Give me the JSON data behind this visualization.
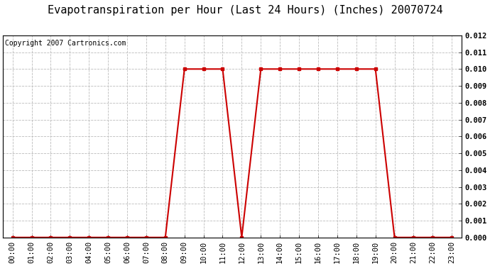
{
  "title": "Evapotranspiration per Hour (Last 24 Hours) (Inches) 20070724",
  "copyright_text": "Copyright 2007 Cartronics.com",
  "hours": [
    "00:00",
    "01:00",
    "02:00",
    "03:00",
    "04:00",
    "05:00",
    "06:00",
    "07:00",
    "08:00",
    "09:00",
    "10:00",
    "11:00",
    "12:00",
    "13:00",
    "14:00",
    "15:00",
    "16:00",
    "17:00",
    "18:00",
    "19:00",
    "20:00",
    "21:00",
    "22:00",
    "23:00"
  ],
  "values": [
    0.0,
    0.0,
    0.0,
    0.0,
    0.0,
    0.0,
    0.0,
    0.0,
    0.0,
    0.01,
    0.01,
    0.01,
    0.0,
    0.01,
    0.01,
    0.01,
    0.01,
    0.01,
    0.01,
    0.01,
    0.0,
    0.0,
    0.0,
    0.0
  ],
  "ylim": [
    0,
    0.012
  ],
  "yticks": [
    0.0,
    0.001,
    0.002,
    0.003,
    0.004,
    0.005,
    0.006,
    0.007,
    0.008,
    0.009,
    0.01,
    0.011,
    0.012
  ],
  "line_color": "#cc0000",
  "marker": "s",
  "marker_size": 2.5,
  "grid_color": "#bbbbbb",
  "background_color": "#ffffff",
  "title_fontsize": 11,
  "copyright_fontsize": 7,
  "tick_fontsize": 7.5,
  "axis_label_color": "#000000"
}
